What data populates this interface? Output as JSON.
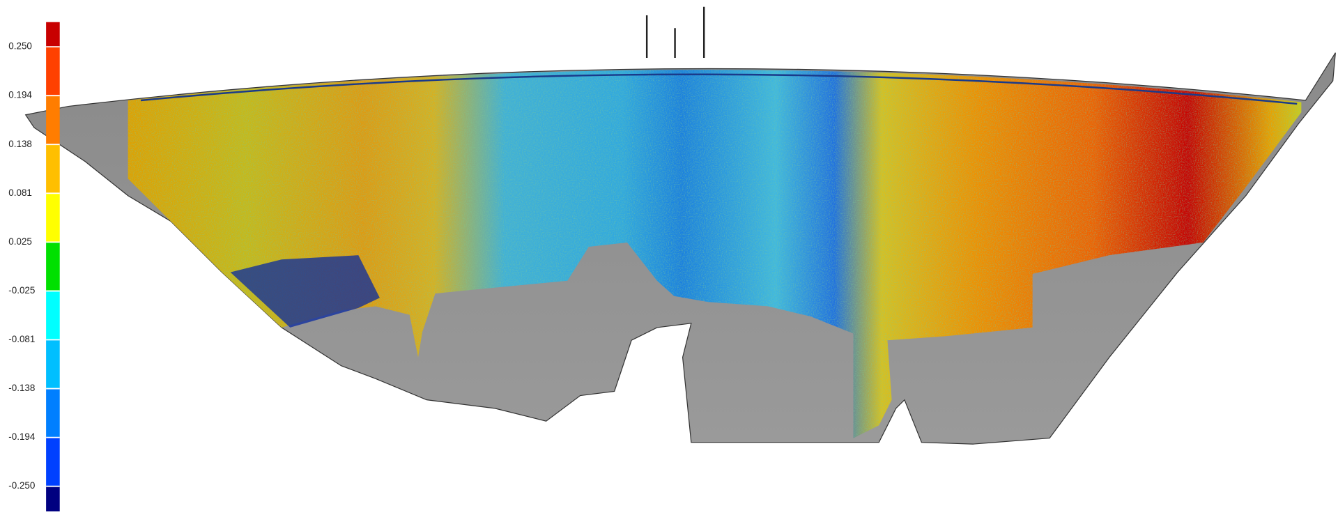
{
  "colorbar": {
    "ticks": [
      {
        "value": 0.25,
        "label": "0.250"
      },
      {
        "value": 0.194,
        "label": "0.194"
      },
      {
        "value": 0.138,
        "label": "0.138"
      },
      {
        "value": 0.081,
        "label": "0.081"
      },
      {
        "value": 0.025,
        "label": "0.025"
      },
      {
        "value": -0.025,
        "label": "-0.025"
      },
      {
        "value": -0.081,
        "label": "-0.081"
      },
      {
        "value": -0.138,
        "label": "-0.138"
      },
      {
        "value": -0.194,
        "label": "-0.194"
      },
      {
        "value": -0.25,
        "label": "-0.250"
      }
    ],
    "colors": [
      "#c80000",
      "#ff4000",
      "#ff7d00",
      "#ffbf00",
      "#ffff00",
      "#00e000",
      "#00ffff",
      "#00bfff",
      "#007fff",
      "#0040ff",
      "#000080"
    ]
  }
}
